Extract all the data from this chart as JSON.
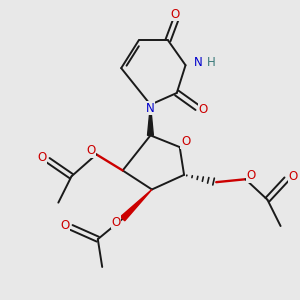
{
  "bg_color": "#e8e8e8",
  "bond_color": "#1a1a1a",
  "N_color": "#0000cc",
  "O_color": "#cc0000",
  "H_color": "#3a7a7a",
  "lw": 1.4,
  "fs": 8.5,
  "xlim": [
    0,
    10
  ],
  "ylim": [
    0,
    10
  ]
}
